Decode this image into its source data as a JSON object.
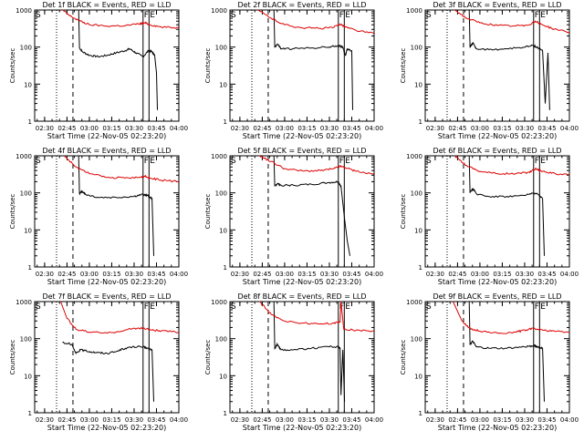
{
  "figure": {
    "xlabel": "Start Time (22-Nov-05 02:23:20)",
    "ylabel": "Counts/sec",
    "x_ticks": [
      "02:30",
      "02:45",
      "03:00",
      "03:15",
      "03:30",
      "03:45",
      "04:00"
    ],
    "y_ticks": [
      "1",
      "10",
      "100",
      "1000"
    ],
    "marker_s": "S",
    "marker_f": "F",
    "marker_e": "E",
    "colors": {
      "events": "#000000",
      "lld": "#dd0000",
      "axes": "#000000"
    }
  },
  "chart_data": [
    {
      "type": "line",
      "title": "Det 1f BLACK = Events, RED = LLD",
      "x_range": [
        "02:23:20",
        "04:00"
      ],
      "y_scale": "log",
      "ylim": [
        1,
        1000
      ],
      "lines": {
        "dotted": "02:38",
        "dashed": "02:49",
        "solid_1": "03:36",
        "solid_2": "03:40"
      },
      "series": [
        {
          "name": "Events",
          "key": "events",
          "values": [
            [
              2.88,
              1000
            ],
            [
              2.89,
              95
            ],
            [
              2.92,
              75
            ],
            [
              3.0,
              60
            ],
            [
              3.1,
              55
            ],
            [
              3.2,
              60
            ],
            [
              3.3,
              70
            ],
            [
              3.4,
              80
            ],
            [
              3.45,
              90
            ],
            [
              3.52,
              70
            ],
            [
              3.6,
              55
            ],
            [
              3.66,
              80
            ],
            [
              3.7,
              75
            ],
            [
              3.73,
              60
            ],
            [
              3.75,
              20
            ],
            [
              3.76,
              2
            ]
          ]
        },
        {
          "name": "LLD",
          "key": "lld",
          "values": [
            [
              2.7,
              1000
            ],
            [
              2.78,
              700
            ],
            [
              2.9,
              500
            ],
            [
              3.0,
              400
            ],
            [
              3.2,
              370
            ],
            [
              3.4,
              380
            ],
            [
              3.55,
              420
            ],
            [
              3.62,
              450
            ],
            [
              3.68,
              400
            ],
            [
              3.8,
              350
            ],
            [
              4.0,
              330
            ]
          ]
        }
      ]
    },
    {
      "type": "line",
      "title": "Det 2f BLACK = Events, RED = LLD",
      "x_range": [
        "02:23:20",
        "04:00"
      ],
      "y_scale": "log",
      "ylim": [
        1,
        1000
      ],
      "lines": {
        "dotted": "02:38",
        "dashed": "02:49",
        "solid_1": "03:36",
        "solid_2": "03:40"
      },
      "series": [
        {
          "name": "Events",
          "key": "events",
          "values": [
            [
              2.88,
              1000
            ],
            [
              2.89,
              100
            ],
            [
              2.92,
              120
            ],
            [
              2.96,
              90
            ],
            [
              3.1,
              90
            ],
            [
              3.3,
              95
            ],
            [
              3.5,
              100
            ],
            [
              3.6,
              110
            ],
            [
              3.65,
              100
            ],
            [
              3.68,
              60
            ],
            [
              3.7,
              90
            ],
            [
              3.75,
              80
            ],
            [
              3.76,
              2
            ]
          ]
        },
        {
          "name": "LLD",
          "key": "lld",
          "values": [
            [
              2.7,
              1000
            ],
            [
              2.85,
              600
            ],
            [
              3.0,
              400
            ],
            [
              3.2,
              330
            ],
            [
              3.4,
              320
            ],
            [
              3.55,
              340
            ],
            [
              3.62,
              420
            ],
            [
              3.68,
              350
            ],
            [
              3.8,
              280
            ],
            [
              4.0,
              230
            ]
          ]
        }
      ]
    },
    {
      "type": "line",
      "title": "Det 3f BLACK = Events, RED = LLD",
      "x_range": [
        "02:23:20",
        "04:00"
      ],
      "y_scale": "log",
      "ylim": [
        1,
        1000
      ],
      "lines": {
        "dotted": "02:38",
        "dashed": "02:49",
        "solid_1": "03:36",
        "solid_2": "03:40"
      },
      "series": [
        {
          "name": "Events",
          "key": "events",
          "values": [
            [
              2.88,
              1000
            ],
            [
              2.89,
              100
            ],
            [
              2.92,
              130
            ],
            [
              2.96,
              90
            ],
            [
              3.1,
              85
            ],
            [
              3.3,
              90
            ],
            [
              3.5,
              100
            ],
            [
              3.6,
              110
            ],
            [
              3.65,
              95
            ],
            [
              3.7,
              80
            ],
            [
              3.73,
              3
            ],
            [
              3.76,
              70
            ],
            [
              3.78,
              2
            ]
          ]
        },
        {
          "name": "LLD",
          "key": "lld",
          "values": [
            [
              2.72,
              1000
            ],
            [
              2.85,
              600
            ],
            [
              3.0,
              450
            ],
            [
              3.2,
              380
            ],
            [
              3.4,
              370
            ],
            [
              3.55,
              400
            ],
            [
              3.62,
              500
            ],
            [
              3.68,
              420
            ],
            [
              3.8,
              320
            ],
            [
              4.0,
              250
            ]
          ]
        }
      ]
    },
    {
      "type": "line",
      "title": "Det 4f BLACK = Events, RED = LLD",
      "x_range": [
        "02:23:20",
        "04:00"
      ],
      "y_scale": "log",
      "ylim": [
        1,
        1000
      ],
      "lines": {
        "dotted": "02:38",
        "dashed": "02:49",
        "solid_1": "03:36",
        "solid_2": "03:40"
      },
      "series": [
        {
          "name": "Events",
          "key": "events",
          "values": [
            [
              2.88,
              1000
            ],
            [
              2.89,
              95
            ],
            [
              2.92,
              110
            ],
            [
              2.96,
              90
            ],
            [
              3.1,
              75
            ],
            [
              3.3,
              75
            ],
            [
              3.5,
              80
            ],
            [
              3.6,
              90
            ],
            [
              3.65,
              85
            ],
            [
              3.7,
              70
            ],
            [
              3.72,
              2
            ]
          ]
        },
        {
          "name": "LLD",
          "key": "lld",
          "values": [
            [
              2.72,
              1000
            ],
            [
              2.85,
              500
            ],
            [
              3.0,
              330
            ],
            [
              3.2,
              260
            ],
            [
              3.4,
              250
            ],
            [
              3.55,
              260
            ],
            [
              3.62,
              280
            ],
            [
              3.68,
              250
            ],
            [
              3.8,
              220
            ],
            [
              4.0,
              200
            ]
          ]
        }
      ]
    },
    {
      "type": "line",
      "title": "Det 5f BLACK = Events, RED = LLD",
      "x_range": [
        "02:23:20",
        "04:00"
      ],
      "y_scale": "log",
      "ylim": [
        1,
        1000
      ],
      "lines": {
        "dotted": "02:38",
        "dashed": "02:49",
        "solid_1": "03:36",
        "solid_2": "03:40"
      },
      "series": [
        {
          "name": "Events",
          "key": "events",
          "values": [
            [
              2.88,
              1000
            ],
            [
              2.89,
              150
            ],
            [
              2.92,
              180
            ],
            [
              2.96,
              160
            ],
            [
              3.1,
              160
            ],
            [
              3.3,
              170
            ],
            [
              3.5,
              190
            ],
            [
              3.6,
              200
            ],
            [
              3.63,
              150
            ],
            [
              3.67,
              20
            ],
            [
              3.7,
              5
            ],
            [
              3.73,
              2
            ]
          ]
        },
        {
          "name": "LLD",
          "key": "lld",
          "values": [
            [
              2.72,
              1000
            ],
            [
              2.85,
              700
            ],
            [
              3.0,
              450
            ],
            [
              3.2,
              390
            ],
            [
              3.4,
              400
            ],
            [
              3.55,
              450
            ],
            [
              3.62,
              520
            ],
            [
              3.68,
              480
            ],
            [
              3.8,
              380
            ],
            [
              4.0,
              320
            ]
          ]
        }
      ]
    },
    {
      "type": "line",
      "title": "Det 6f BLACK = Events, RED = LLD",
      "x_range": [
        "02:23:20",
        "04:00"
      ],
      "y_scale": "log",
      "ylim": [
        1,
        1000
      ],
      "lines": {
        "dotted": "02:38",
        "dashed": "02:49",
        "solid_1": "03:36",
        "solid_2": "03:40"
      },
      "series": [
        {
          "name": "Events",
          "key": "events",
          "values": [
            [
              2.88,
              1000
            ],
            [
              2.89,
              100
            ],
            [
              2.92,
              130
            ],
            [
              2.96,
              95
            ],
            [
              3.1,
              80
            ],
            [
              3.3,
              80
            ],
            [
              3.5,
              85
            ],
            [
              3.6,
              100
            ],
            [
              3.65,
              90
            ],
            [
              3.7,
              70
            ],
            [
              3.72,
              2
            ]
          ]
        },
        {
          "name": "LLD",
          "key": "lld",
          "values": [
            [
              2.72,
              1000
            ],
            [
              2.85,
              550
            ],
            [
              3.0,
              380
            ],
            [
              3.2,
              330
            ],
            [
              3.4,
              330
            ],
            [
              3.55,
              360
            ],
            [
              3.62,
              450
            ],
            [
              3.68,
              400
            ],
            [
              3.8,
              340
            ],
            [
              4.0,
              300
            ]
          ]
        }
      ]
    },
    {
      "type": "line",
      "title": "Det 7f BLACK = Events, RED = LLD",
      "x_range": [
        "02:23:20",
        "04:00"
      ],
      "y_scale": "log",
      "ylim": [
        1,
        1000
      ],
      "lines": {
        "dotted": "02:38",
        "dashed": "02:49",
        "solid_1": "03:36",
        "solid_2": "03:40"
      },
      "series": [
        {
          "name": "Events",
          "key": "events",
          "values": [
            [
              2.7,
              80
            ],
            [
              2.8,
              70
            ],
            [
              2.85,
              40
            ],
            [
              2.9,
              50
            ],
            [
              3.0,
              45
            ],
            [
              3.1,
              42
            ],
            [
              3.2,
              40
            ],
            [
              3.3,
              45
            ],
            [
              3.4,
              55
            ],
            [
              3.5,
              60
            ],
            [
              3.6,
              60
            ],
            [
              3.65,
              55
            ],
            [
              3.7,
              50
            ],
            [
              3.72,
              2
            ]
          ]
        },
        {
          "name": "LLD",
          "key": "lld",
          "values": [
            [
              2.68,
              1000
            ],
            [
              2.75,
              350
            ],
            [
              2.85,
              180
            ],
            [
              3.0,
              150
            ],
            [
              3.2,
              140
            ],
            [
              3.4,
              170
            ],
            [
              3.5,
              190
            ],
            [
              3.6,
              190
            ],
            [
              3.7,
              170
            ],
            [
              3.8,
              160
            ],
            [
              4.0,
              150
            ]
          ]
        }
      ]
    },
    {
      "type": "line",
      "title": "Det 8f BLACK = Events, RED = LLD",
      "x_range": [
        "02:23:20",
        "04:00"
      ],
      "y_scale": "log",
      "ylim": [
        1,
        1000
      ],
      "lines": {
        "dotted": "02:38",
        "dashed": "02:49",
        "solid_1": "03:36",
        "solid_2": "03:40"
      },
      "series": [
        {
          "name": "Events",
          "key": "events",
          "values": [
            [
              2.88,
              1000
            ],
            [
              2.89,
              55
            ],
            [
              2.92,
              70
            ],
            [
              2.96,
              50
            ],
            [
              3.1,
              50
            ],
            [
              3.3,
              55
            ],
            [
              3.5,
              60
            ],
            [
              3.6,
              60
            ],
            [
              3.62,
              55
            ],
            [
              3.63,
              3
            ],
            [
              3.65,
              50
            ],
            [
              3.67,
              2
            ]
          ]
        },
        {
          "name": "LLD",
          "key": "lld",
          "values": [
            [
              2.72,
              1000
            ],
            [
              2.85,
              450
            ],
            [
              3.0,
              300
            ],
            [
              3.2,
              260
            ],
            [
              3.4,
              250
            ],
            [
              3.55,
              260
            ],
            [
              3.62,
              280
            ],
            [
              3.63,
              1000
            ],
            [
              3.66,
              180
            ],
            [
              3.8,
              170
            ],
            [
              4.0,
              160
            ]
          ]
        }
      ]
    },
    {
      "type": "line",
      "title": "Det 9f BLACK = Events, RED = LLD",
      "x_range": [
        "02:23:20",
        "04:00"
      ],
      "y_scale": "log",
      "ylim": [
        1,
        1000
      ],
      "lines": {
        "dotted": "02:38",
        "dashed": "02:49",
        "solid_1": "03:36",
        "solid_2": "03:40"
      },
      "series": [
        {
          "name": "Events",
          "key": "events",
          "values": [
            [
              2.88,
              1000
            ],
            [
              2.89,
              70
            ],
            [
              2.92,
              85
            ],
            [
              2.96,
              60
            ],
            [
              3.1,
              55
            ],
            [
              3.3,
              55
            ],
            [
              3.5,
              60
            ],
            [
              3.6,
              65
            ],
            [
              3.65,
              60
            ],
            [
              3.7,
              55
            ],
            [
              3.72,
              2
            ]
          ]
        },
        {
          "name": "LLD",
          "key": "lld",
          "values": [
            [
              2.7,
              1000
            ],
            [
              2.8,
              300
            ],
            [
              2.9,
              180
            ],
            [
              3.0,
              160
            ],
            [
              3.2,
              140
            ],
            [
              3.4,
              150
            ],
            [
              3.5,
              170
            ],
            [
              3.6,
              190
            ],
            [
              3.7,
              170
            ],
            [
              3.8,
              160
            ],
            [
              4.0,
              150
            ]
          ]
        }
      ]
    }
  ]
}
